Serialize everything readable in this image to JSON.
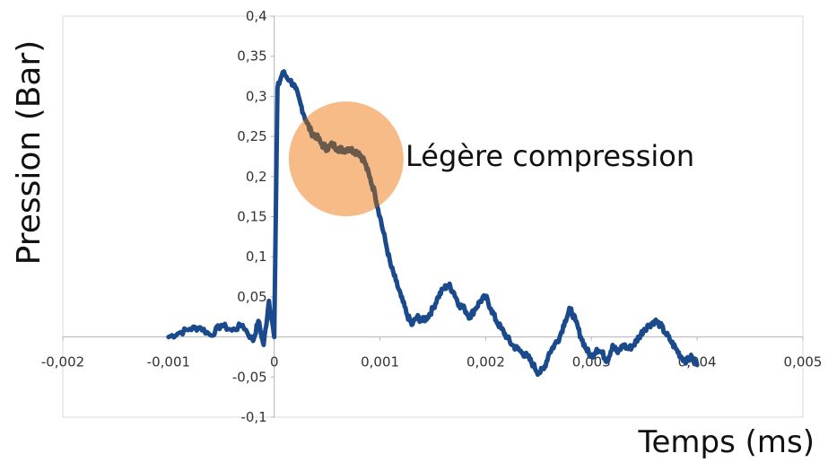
{
  "chart_data": {
    "type": "line",
    "xlabel": "Temps (ms)",
    "ylabel": "Pression (Bar)",
    "xlim": [
      -0.002,
      0.005
    ],
    "ylim": [
      -0.1,
      0.4
    ],
    "x_ticks": [
      "-0,002",
      "-0,001",
      "0",
      "0,001",
      "0,002",
      "0,003",
      "0,004",
      "0,005"
    ],
    "y_ticks": [
      "-0,1",
      "-0,05",
      "0",
      "0,05",
      "0,1",
      "0,15",
      "0,2",
      "0,25",
      "0,3",
      "0,35",
      "0,4"
    ],
    "grid": false,
    "series_color": "#1a4a8c",
    "highlight_color": "#f4a460",
    "annotation": {
      "text": "Légère compression",
      "center": [
        0.00068,
        0.222
      ]
    },
    "series": [
      {
        "x": [
          -0.001,
          -0.0009,
          -0.0008,
          -0.0007,
          -0.0006,
          -0.0005,
          -0.0004,
          -0.0003,
          -0.0002,
          -0.00015,
          -0.0001,
          -5e-05,
          0.0,
          3e-05,
          8e-05,
          0.00015,
          0.0002,
          0.00025,
          0.0003,
          0.00035,
          0.0004,
          0.00045,
          0.0005,
          0.00055,
          0.0006,
          0.00065,
          0.0007,
          0.00075,
          0.0008,
          0.00085,
          0.0009,
          0.00095,
          0.001,
          0.00105,
          0.0011,
          0.00115,
          0.0012,
          0.00125,
          0.0013,
          0.00135,
          0.0014,
          0.00145,
          0.0015,
          0.00155,
          0.0016,
          0.00165,
          0.0017,
          0.00175,
          0.0018,
          0.00185,
          0.0019,
          0.00195,
          0.002,
          0.00205,
          0.0021,
          0.00215,
          0.0022,
          0.00225,
          0.0023,
          0.00235,
          0.0024,
          0.00245,
          0.0025,
          0.00255,
          0.0026,
          0.00265,
          0.0027,
          0.00275,
          0.0028,
          0.00285,
          0.0029,
          0.00295,
          0.003,
          0.00305,
          0.0031,
          0.00315,
          0.0032,
          0.00325,
          0.0033,
          0.00335,
          0.0034,
          0.00345,
          0.0035,
          0.00355,
          0.0036,
          0.00365,
          0.0037,
          0.00375,
          0.0038,
          0.00385,
          0.0039,
          0.00395,
          0.004
        ],
        "y": [
          0.0,
          0.005,
          0.01,
          0.012,
          0.002,
          0.015,
          0.008,
          0.015,
          -0.005,
          0.02,
          -0.01,
          0.045,
          0.0,
          0.31,
          0.33,
          0.32,
          0.31,
          0.29,
          0.27,
          0.255,
          0.25,
          0.24,
          0.235,
          0.24,
          0.235,
          0.233,
          0.235,
          0.232,
          0.23,
          0.22,
          0.2,
          0.18,
          0.15,
          0.12,
          0.09,
          0.07,
          0.05,
          0.03,
          0.015,
          0.025,
          0.02,
          0.025,
          0.035,
          0.05,
          0.06,
          0.065,
          0.055,
          0.04,
          0.035,
          0.025,
          0.035,
          0.045,
          0.05,
          0.035,
          0.02,
          0.01,
          0.0,
          -0.01,
          -0.015,
          -0.02,
          -0.025,
          -0.035,
          -0.045,
          -0.04,
          -0.02,
          -0.01,
          0.0,
          0.02,
          0.035,
          0.02,
          0.0,
          -0.015,
          -0.025,
          -0.015,
          -0.02,
          -0.03,
          -0.01,
          -0.02,
          -0.01,
          -0.015,
          -0.01,
          0.0,
          0.01,
          0.015,
          0.02,
          0.015,
          0.005,
          -0.005,
          -0.015,
          -0.025,
          -0.03,
          -0.025,
          -0.035
        ]
      }
    ]
  }
}
